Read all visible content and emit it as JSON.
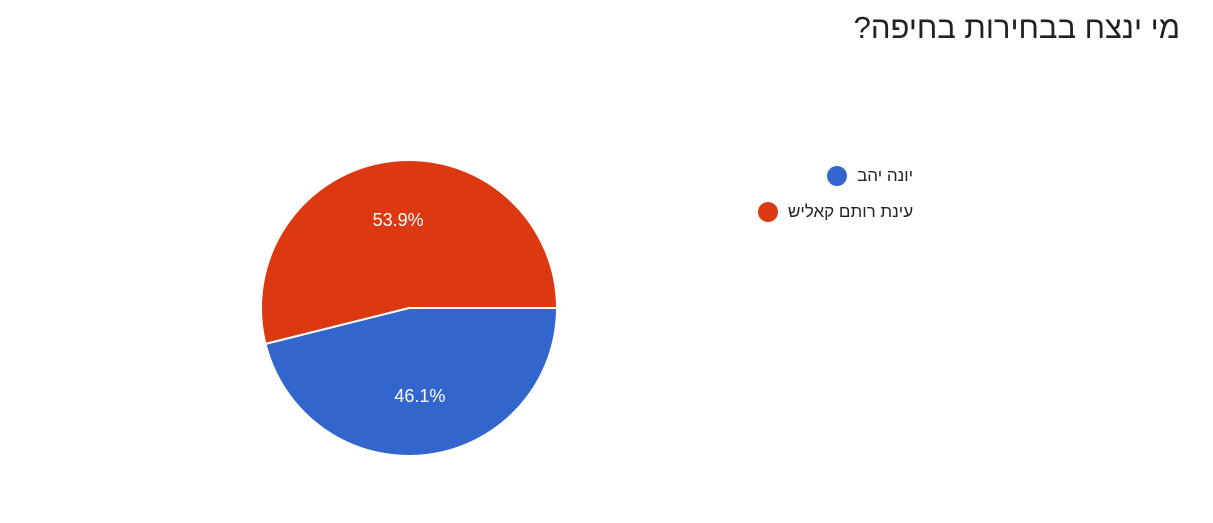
{
  "title": "מי ינצח בבחירות בחיפה?",
  "chart_data": {
    "type": "pie",
    "title": "מי ינצח בבחירות בחיפה?",
    "slices": [
      {
        "label": "יונה יהב",
        "value": 46.1,
        "display": "46.1%",
        "color": "#3366cc"
      },
      {
        "label": "עינת רותם קאליש",
        "value": 53.9,
        "display": "53.9%",
        "color": "#dc3912"
      }
    ],
    "legend_position": "right"
  }
}
